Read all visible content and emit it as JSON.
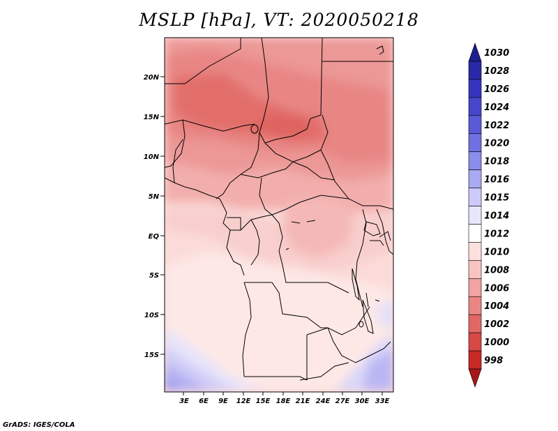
{
  "title": "MSLP [hPa], VT: 2020050218",
  "credit": "GrADS: IGES/COLA",
  "map": {
    "variable": "Mean sea level pressure",
    "units": "hPa",
    "lat_labels": [
      "20N",
      "15N",
      "10N",
      "5N",
      "EQ",
      "5S",
      "10S",
      "15S"
    ],
    "lon_labels": [
      "3E",
      "6E",
      "9E",
      "12E",
      "15E",
      "18E",
      "21E",
      "24E",
      "27E",
      "30E",
      "33E"
    ],
    "lat_range": [
      -20,
      24.5
    ],
    "lon_range": [
      0,
      34.5
    ]
  },
  "colorbar": {
    "levels": [
      "1030",
      "1028",
      "1026",
      "1024",
      "1022",
      "1020",
      "1018",
      "1016",
      "1015",
      "1014",
      "1012",
      "1010",
      "1008",
      "1006",
      "1004",
      "1002",
      "1000",
      "998"
    ],
    "colors": [
      "#1e1e8c",
      "#2828a8",
      "#3434be",
      "#4646cc",
      "#5a5ad8",
      "#7070e2",
      "#8c8cea",
      "#aaaaf2",
      "#cccafa",
      "#e8e6fc",
      "#ffffff",
      "#fde0de",
      "#f8c4c2",
      "#f1a4a2",
      "#e98683",
      "#e06864",
      "#d84844",
      "#c82a26",
      "#a81818"
    ]
  }
}
